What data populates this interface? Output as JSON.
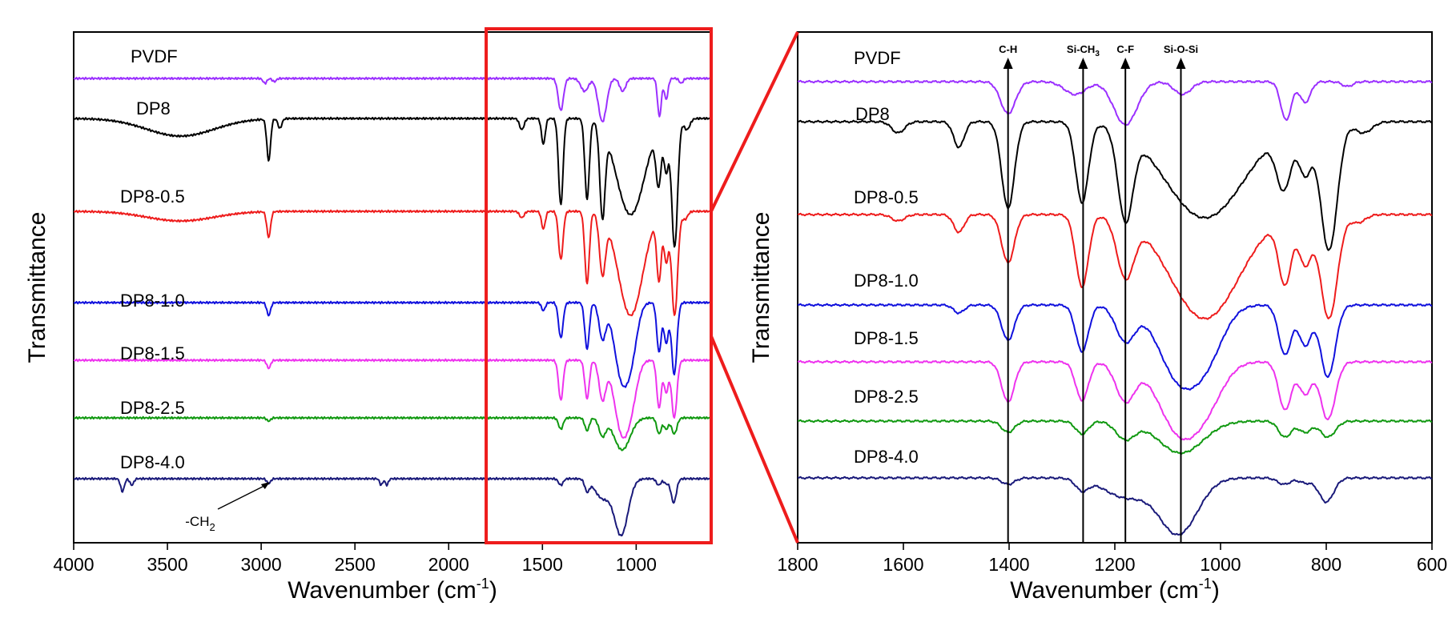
{
  "chart_data": [
    {
      "type": "line",
      "panel": "full",
      "xlabel": "Wavenumber (cm",
      "xlabel_sup": "-1",
      "xlabel_tail": ")",
      "ylabel": "Transmittance",
      "xlim": [
        4000,
        600
      ],
      "xticks": [
        4000,
        3500,
        3000,
        2500,
        2000,
        1500,
        1000
      ],
      "zoom_range": [
        1800,
        600
      ],
      "zoom_box_color": "#ee1c1c",
      "annotation": {
        "text": "-CH",
        "sub": "2",
        "x": 2950
      },
      "series": [
        {
          "name": "PVDF",
          "color": "#9b30ff"
        },
        {
          "name": "DP8",
          "color": "#000000"
        },
        {
          "name": "DP8-0.5",
          "color": "#ee1c1c"
        },
        {
          "name": "DP8-1.0",
          "color": "#1111dd"
        },
        {
          "name": "DP8-1.5",
          "color": "#ee33ee"
        },
        {
          "name": "DP8-2.5",
          "color": "#119911"
        },
        {
          "name": "DP8-4.0",
          "color": "#1a1a7a"
        }
      ]
    },
    {
      "type": "line",
      "panel": "zoom",
      "xlabel": "Wavenumber (cm",
      "xlabel_sup": "-1",
      "xlabel_tail": ")",
      "ylabel": "Transmittance",
      "xlim": [
        1800,
        600
      ],
      "xticks": [
        1800,
        1600,
        1400,
        1200,
        1000,
        800,
        600
      ],
      "peak_markers": [
        {
          "label": "C-H",
          "x": 1402
        },
        {
          "label": "Si-CH",
          "sub": "3",
          "x": 1260
        },
        {
          "label": "C-F",
          "x": 1180
        },
        {
          "label": "Si-O-Si",
          "x": 1075
        }
      ],
      "series": [
        {
          "name": "PVDF",
          "color": "#9b30ff"
        },
        {
          "name": "DP8",
          "color": "#000000"
        },
        {
          "name": "DP8-0.5",
          "color": "#ee1c1c"
        },
        {
          "name": "DP8-1.0",
          "color": "#1111dd"
        },
        {
          "name": "DP8-1.5",
          "color": "#ee33ee"
        },
        {
          "name": "DP8-2.5",
          "color": "#119911"
        },
        {
          "name": "DP8-4.0",
          "color": "#1a1a7a"
        }
      ]
    }
  ]
}
